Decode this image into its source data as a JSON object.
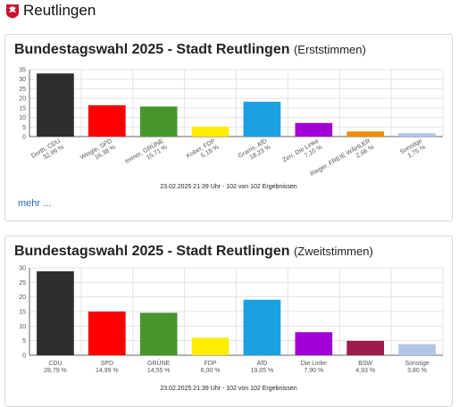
{
  "header": {
    "title": "Reutlingen",
    "logo_icon": "reutlingen-eagle-icon"
  },
  "more_label": "mehr ...",
  "chart_data": [
    {
      "type": "bar",
      "title": "Bundestagswahl 2025 - Stadt Reutlingen",
      "subtitle": "(Erststimmen)",
      "ylim": [
        0,
        35
      ],
      "yticks": [
        0,
        5,
        10,
        15,
        20,
        25,
        30,
        35
      ],
      "grid": true,
      "label_style": "rotated",
      "categories": [
        "Dorth, CDU",
        "Weigle, SPD",
        "Immer, GRÜNE",
        "Kober, FDP",
        "Grams, AfD",
        "Zerr, Die Linke",
        "Rieger, FREIE WÄHLER",
        "Sonstige"
      ],
      "value_labels": [
        "32,99 %",
        "16,38 %",
        "15,71 %",
        "5,18 %",
        "18,23 %",
        "7,10 %",
        "2,66 %",
        "1,75 %"
      ],
      "values": [
        32.99,
        16.38,
        15.71,
        5.18,
        18.23,
        7.1,
        2.66,
        1.75
      ],
      "colors": [
        "#2d2d2d",
        "#ff0000",
        "#46962b",
        "#ffed00",
        "#1ba1e2",
        "#a100d6",
        "#f28c00",
        "#b3c6e8"
      ],
      "footnote": "23.02.2025 21:39 Uhr - 102 von 102 Ergebnissen"
    },
    {
      "type": "bar",
      "title": "Bundestagswahl 2025 - Stadt Reutlingen",
      "subtitle": "(Zweitstimmen)",
      "ylim": [
        0,
        30
      ],
      "yticks": [
        0,
        5,
        10,
        15,
        20,
        25,
        30
      ],
      "grid": true,
      "label_style": "horizontal",
      "categories": [
        "CDU",
        "SPD",
        "GRÜNE",
        "FDP",
        "AfD",
        "Die Linke",
        "BSW",
        "Sonstige"
      ],
      "value_labels": [
        "28,79 %",
        "14,99 %",
        "14,55 %",
        "6,00 %",
        "19,05 %",
        "7,90 %",
        "4,93 %",
        "3,80 %"
      ],
      "values": [
        28.79,
        14.99,
        14.55,
        6.0,
        19.05,
        7.9,
        4.93,
        3.8
      ],
      "colors": [
        "#2d2d2d",
        "#ff0000",
        "#46962b",
        "#ffed00",
        "#1ba1e2",
        "#a100d6",
        "#9b1b4a",
        "#b3c6e8"
      ],
      "footnote": "23.02.2025 21:39 Uhr - 102 von 102 Ergebnissen"
    }
  ]
}
